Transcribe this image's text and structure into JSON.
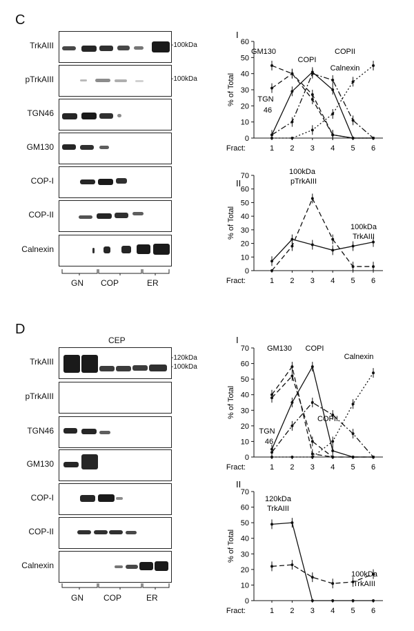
{
  "panel_c": {
    "letter": "C",
    "blot_rows": [
      "TrkAIII",
      "pTrkAIII",
      "TGN46",
      "GM130",
      "COP-I",
      "COP-II",
      "Calnexin"
    ],
    "mw_trk": "-100kDa",
    "mw_ptrk": "-100kDa",
    "fraction_groups": [
      "GN",
      "COP",
      "ER"
    ]
  },
  "panel_d": {
    "letter": "D",
    "header": "CEP",
    "blot_rows": [
      "TrkAIII",
      "pTrkAIII",
      "TGN46",
      "GM130",
      "COP-I",
      "COP-II",
      "Calnexin"
    ],
    "mw_120": "-120kDa",
    "mw_100": "-100kDa",
    "fraction_groups": [
      "GN",
      "COP",
      "ER"
    ]
  },
  "chart_data": [
    {
      "id": "C-I",
      "type": "line",
      "panel": "I",
      "ylabel": "% of Total",
      "xlabel": "Fract:",
      "ylim": [
        0,
        60
      ],
      "yticks": [
        0,
        10,
        20,
        30,
        40,
        50,
        60
      ],
      "x": [
        1,
        2,
        3,
        4,
        5,
        6
      ],
      "series": [
        {
          "name": "GM130",
          "dash": "dashed",
          "values": [
            45,
            40,
            24,
            2,
            0,
            0
          ]
        },
        {
          "name": "TGN46",
          "dash": "dashed",
          "values": [
            31,
            40,
            27,
            2,
            0,
            0
          ]
        },
        {
          "name": "COPI",
          "dash": "solid",
          "values": [
            2,
            29,
            41,
            30,
            0,
            0
          ]
        },
        {
          "name": "COPII",
          "dash": "dashdot",
          "values": [
            2,
            10,
            40,
            36,
            11,
            0
          ]
        },
        {
          "name": "Calnexin",
          "dash": "dotted",
          "values": [
            0,
            0,
            5,
            15,
            35,
            45
          ]
        }
      ],
      "annotations": [
        "GM130",
        "COPI",
        "COPII",
        "Calnexin",
        "TGN",
        "46"
      ]
    },
    {
      "id": "C-II",
      "type": "line",
      "panel": "II",
      "ylabel": "% of Total",
      "xlabel": "Fract:",
      "ylim": [
        0,
        70
      ],
      "yticks": [
        0,
        10,
        20,
        30,
        40,
        50,
        60,
        70
      ],
      "x": [
        1,
        2,
        3,
        4,
        5,
        6
      ],
      "series": [
        {
          "name": "100kDa pTrkAIII",
          "dash": "dashed",
          "values": [
            0,
            18,
            53,
            23,
            3,
            3
          ]
        },
        {
          "name": "100kDa TrkAIII",
          "dash": "solid",
          "values": [
            7,
            23,
            19,
            15,
            18,
            21
          ]
        }
      ],
      "annotations": [
        "100kDa",
        "pTrkAIII",
        "100kDa",
        "TrkAIII"
      ]
    },
    {
      "id": "D-I",
      "type": "line",
      "panel": "I",
      "ylabel": "% of Total",
      "xlabel": "Fract:",
      "ylim": [
        0,
        70
      ],
      "yticks": [
        0,
        10,
        20,
        30,
        40,
        50,
        60,
        70
      ],
      "x": [
        1,
        2,
        3,
        4,
        5,
        6
      ],
      "series": [
        {
          "name": "GM130",
          "dash": "dashed",
          "values": [
            40,
            58,
            2,
            0,
            0,
            0
          ]
        },
        {
          "name": "TGN46",
          "dash": "dashed",
          "values": [
            38,
            52,
            10,
            0,
            0,
            0
          ]
        },
        {
          "name": "COPI",
          "dash": "solid",
          "values": [
            5,
            35,
            58,
            4,
            0,
            0
          ]
        },
        {
          "name": "COPII",
          "dash": "dashdot",
          "values": [
            3,
            20,
            35,
            27,
            15,
            0
          ]
        },
        {
          "name": "Calnexin",
          "dash": "dotted",
          "values": [
            0,
            0,
            0,
            10,
            34,
            54
          ]
        }
      ],
      "annotations": [
        "GM130",
        "COPI",
        "COPII",
        "Calnexin",
        "TGN",
        "46"
      ]
    },
    {
      "id": "D-II",
      "type": "line",
      "panel": "II",
      "ylabel": "% of Total",
      "xlabel": "Fract:",
      "ylim": [
        0,
        70
      ],
      "yticks": [
        0,
        10,
        20,
        30,
        40,
        50,
        60,
        70
      ],
      "x": [
        1,
        2,
        3,
        4,
        5,
        6
      ],
      "series": [
        {
          "name": "120kDa TrkAIII",
          "dash": "solid",
          "values": [
            49,
            50,
            0,
            0,
            0,
            0
          ]
        },
        {
          "name": "100kDa TrkAIII",
          "dash": "dashed",
          "values": [
            22,
            23,
            15,
            11,
            12,
            17
          ]
        }
      ],
      "annotations": [
        "120kDa",
        "TrkAIII",
        "100kDa",
        "TrkAIII"
      ]
    }
  ]
}
